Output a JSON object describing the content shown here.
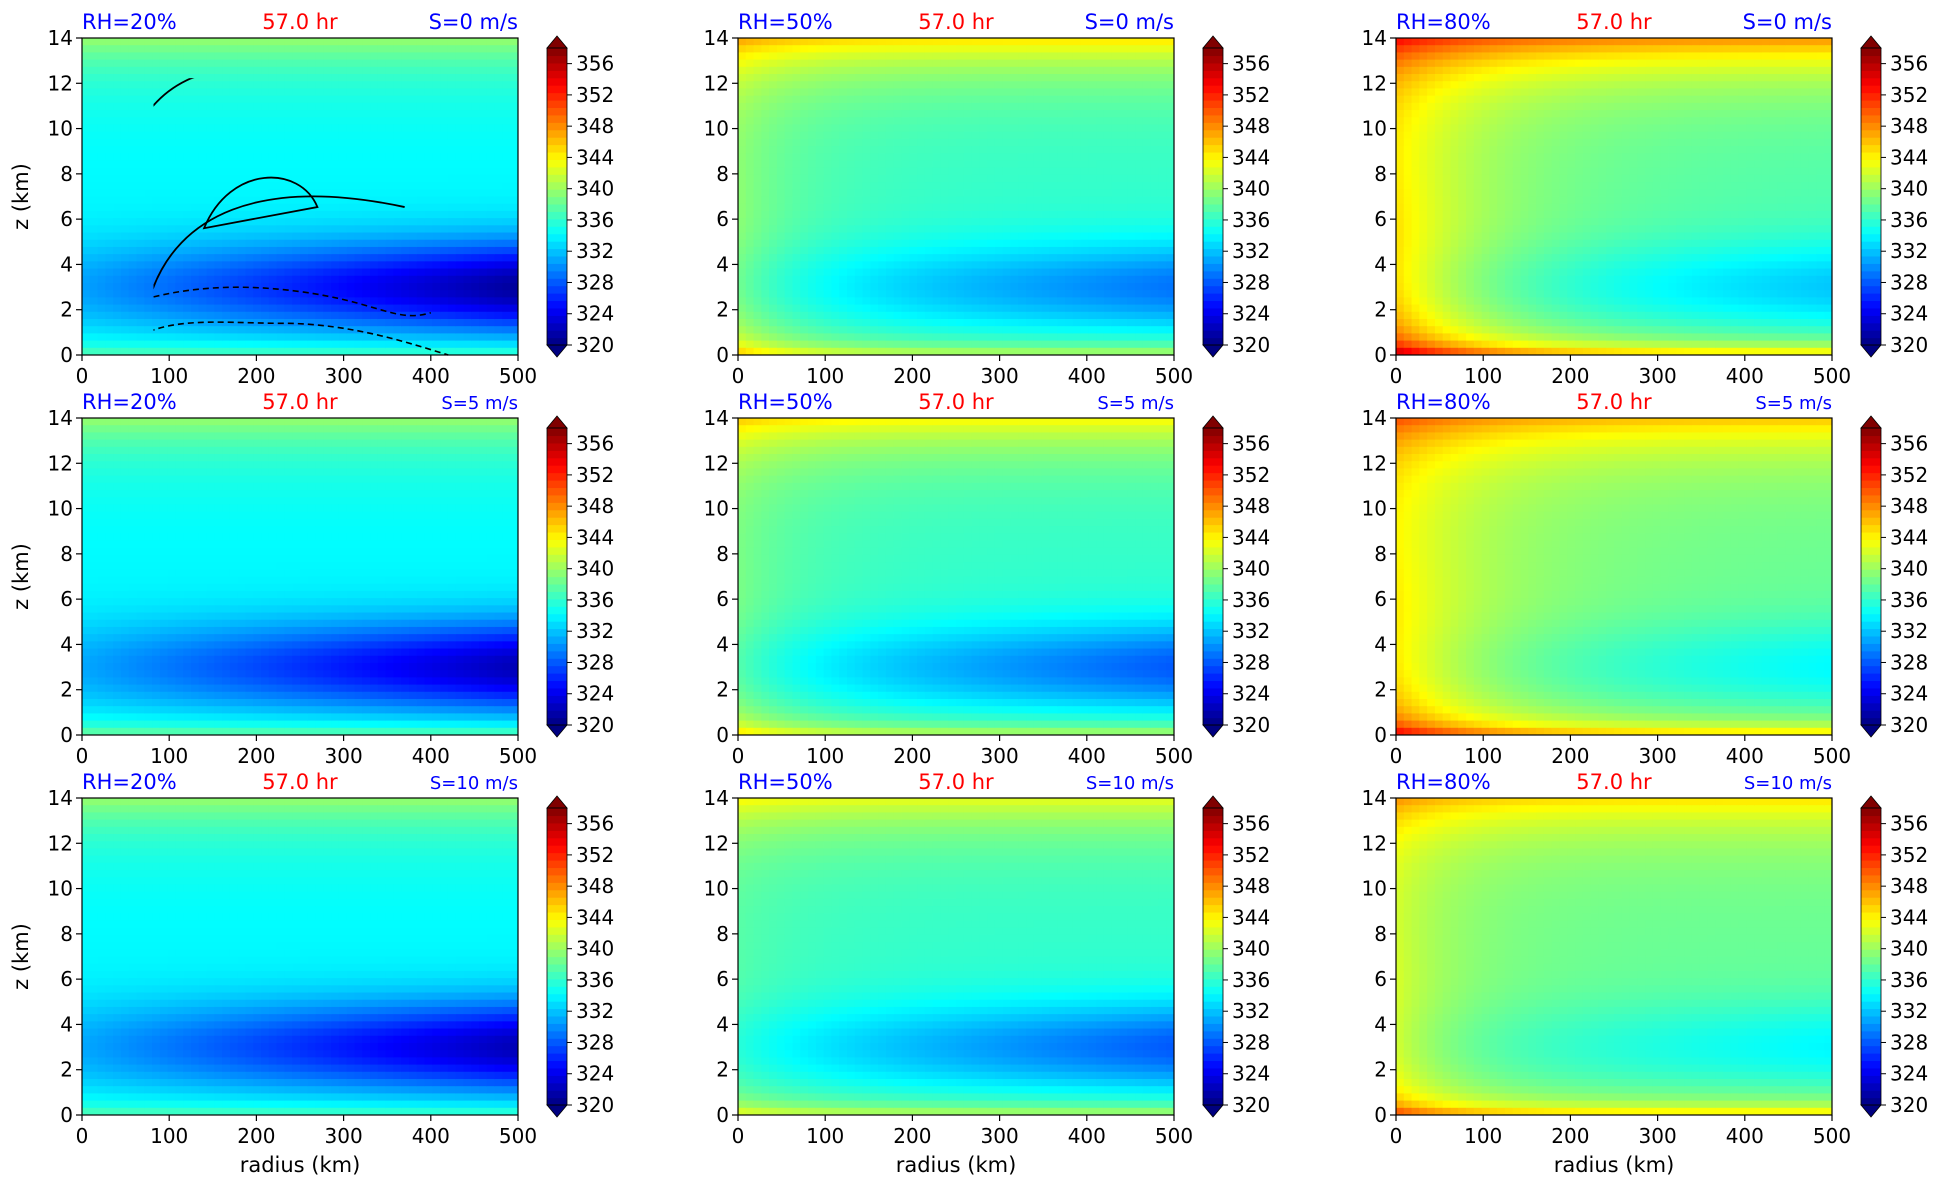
{
  "chart_data": {
    "type": "heatmap",
    "layout": "3x3 grid of radius-height contour panels",
    "time_label": "57.0 hr",
    "time_color": "#ff0000",
    "label_color": "#0000ff",
    "xlabel": "radius (km)",
    "ylabel": "z (km)",
    "xlim": [
      0,
      500
    ],
    "ylim": [
      0,
      14
    ],
    "x_ticks": [
      "0",
      "100",
      "200",
      "300",
      "400",
      "500"
    ],
    "y_ticks": [
      "0",
      "2",
      "4",
      "6",
      "8",
      "10",
      "12",
      "14"
    ],
    "colorbar": {
      "ticks": [
        "320",
        "324",
        "328",
        "332",
        "336",
        "340",
        "344",
        "348",
        "352",
        "356"
      ],
      "range": [
        320,
        358
      ],
      "colormap": "jet",
      "extend": "both"
    },
    "rows": [
      {
        "shear_label": "S=0 m/s"
      },
      {
        "shear_label": "S=5 m/s"
      },
      {
        "shear_label": "S=10 m/s"
      }
    ],
    "columns": [
      {
        "rh_label": "RH=20%"
      },
      {
        "rh_label": "RH=50%"
      },
      {
        "rh_label": "RH=80%"
      }
    ]
  }
}
